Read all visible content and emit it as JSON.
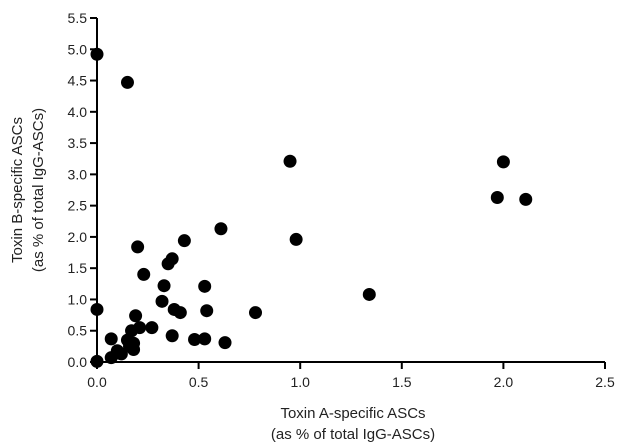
{
  "chart_data": {
    "type": "scatter",
    "xlabel_line1": "Toxin A-specific ASCs",
    "xlabel_line2": "(as % of total IgG-ASCs)",
    "ylabel_line1": "Toxin B-specific ASCs",
    "ylabel_line2": "(as % of total IgG-ASCs)",
    "xlim": [
      0,
      2.5
    ],
    "ylim": [
      0,
      5.5
    ],
    "x_ticks": [
      0,
      0.5,
      1.0,
      1.5,
      2.0,
      2.5
    ],
    "x_tick_labels": [
      "0.0",
      "0.5",
      "1.0",
      "1.5",
      "2.0",
      "2.5"
    ],
    "y_ticks": [
      0,
      0.5,
      1.0,
      1.5,
      2.0,
      2.5,
      3.0,
      3.5,
      4.0,
      4.5,
      5.0,
      5.5
    ],
    "y_tick_labels": [
      "0.0",
      "0.5",
      "1.0",
      "1.5",
      "2.0",
      "2.5",
      "3.0",
      "3.5",
      "4.0",
      "4.5",
      "5.0",
      "5.5"
    ],
    "grid": false,
    "marker_color": "#000000",
    "series": [
      {
        "points": [
          {
            "x": 0.0,
            "y": 4.92
          },
          {
            "x": 0.15,
            "y": 4.47
          },
          {
            "x": 0.0,
            "y": 0.84
          },
          {
            "x": 0.0,
            "y": 0.01
          },
          {
            "x": 0.07,
            "y": 0.37
          },
          {
            "x": 0.07,
            "y": 0.07
          },
          {
            "x": 0.1,
            "y": 0.18
          },
          {
            "x": 0.12,
            "y": 0.13
          },
          {
            "x": 0.15,
            "y": 0.35
          },
          {
            "x": 0.16,
            "y": 0.25
          },
          {
            "x": 0.17,
            "y": 0.5
          },
          {
            "x": 0.18,
            "y": 0.2
          },
          {
            "x": 0.18,
            "y": 0.3
          },
          {
            "x": 0.19,
            "y": 0.74
          },
          {
            "x": 0.2,
            "y": 1.84
          },
          {
            "x": 0.21,
            "y": 0.55
          },
          {
            "x": 0.23,
            "y": 1.4
          },
          {
            "x": 0.27,
            "y": 0.55
          },
          {
            "x": 0.32,
            "y": 0.97
          },
          {
            "x": 0.33,
            "y": 1.22
          },
          {
            "x": 0.35,
            "y": 1.57
          },
          {
            "x": 0.37,
            "y": 1.65
          },
          {
            "x": 0.37,
            "y": 0.42
          },
          {
            "x": 0.38,
            "y": 0.84
          },
          {
            "x": 0.41,
            "y": 0.79
          },
          {
            "x": 0.43,
            "y": 1.94
          },
          {
            "x": 0.48,
            "y": 0.36
          },
          {
            "x": 0.53,
            "y": 1.21
          },
          {
            "x": 0.53,
            "y": 0.37
          },
          {
            "x": 0.54,
            "y": 0.82
          },
          {
            "x": 0.61,
            "y": 2.13
          },
          {
            "x": 0.63,
            "y": 0.31
          },
          {
            "x": 0.78,
            "y": 0.79
          },
          {
            "x": 0.95,
            "y": 3.21
          },
          {
            "x": 0.98,
            "y": 1.96
          },
          {
            "x": 1.34,
            "y": 1.08
          },
          {
            "x": 1.97,
            "y": 2.63
          },
          {
            "x": 2.0,
            "y": 3.2
          },
          {
            "x": 2.11,
            "y": 2.6
          }
        ]
      }
    ]
  }
}
